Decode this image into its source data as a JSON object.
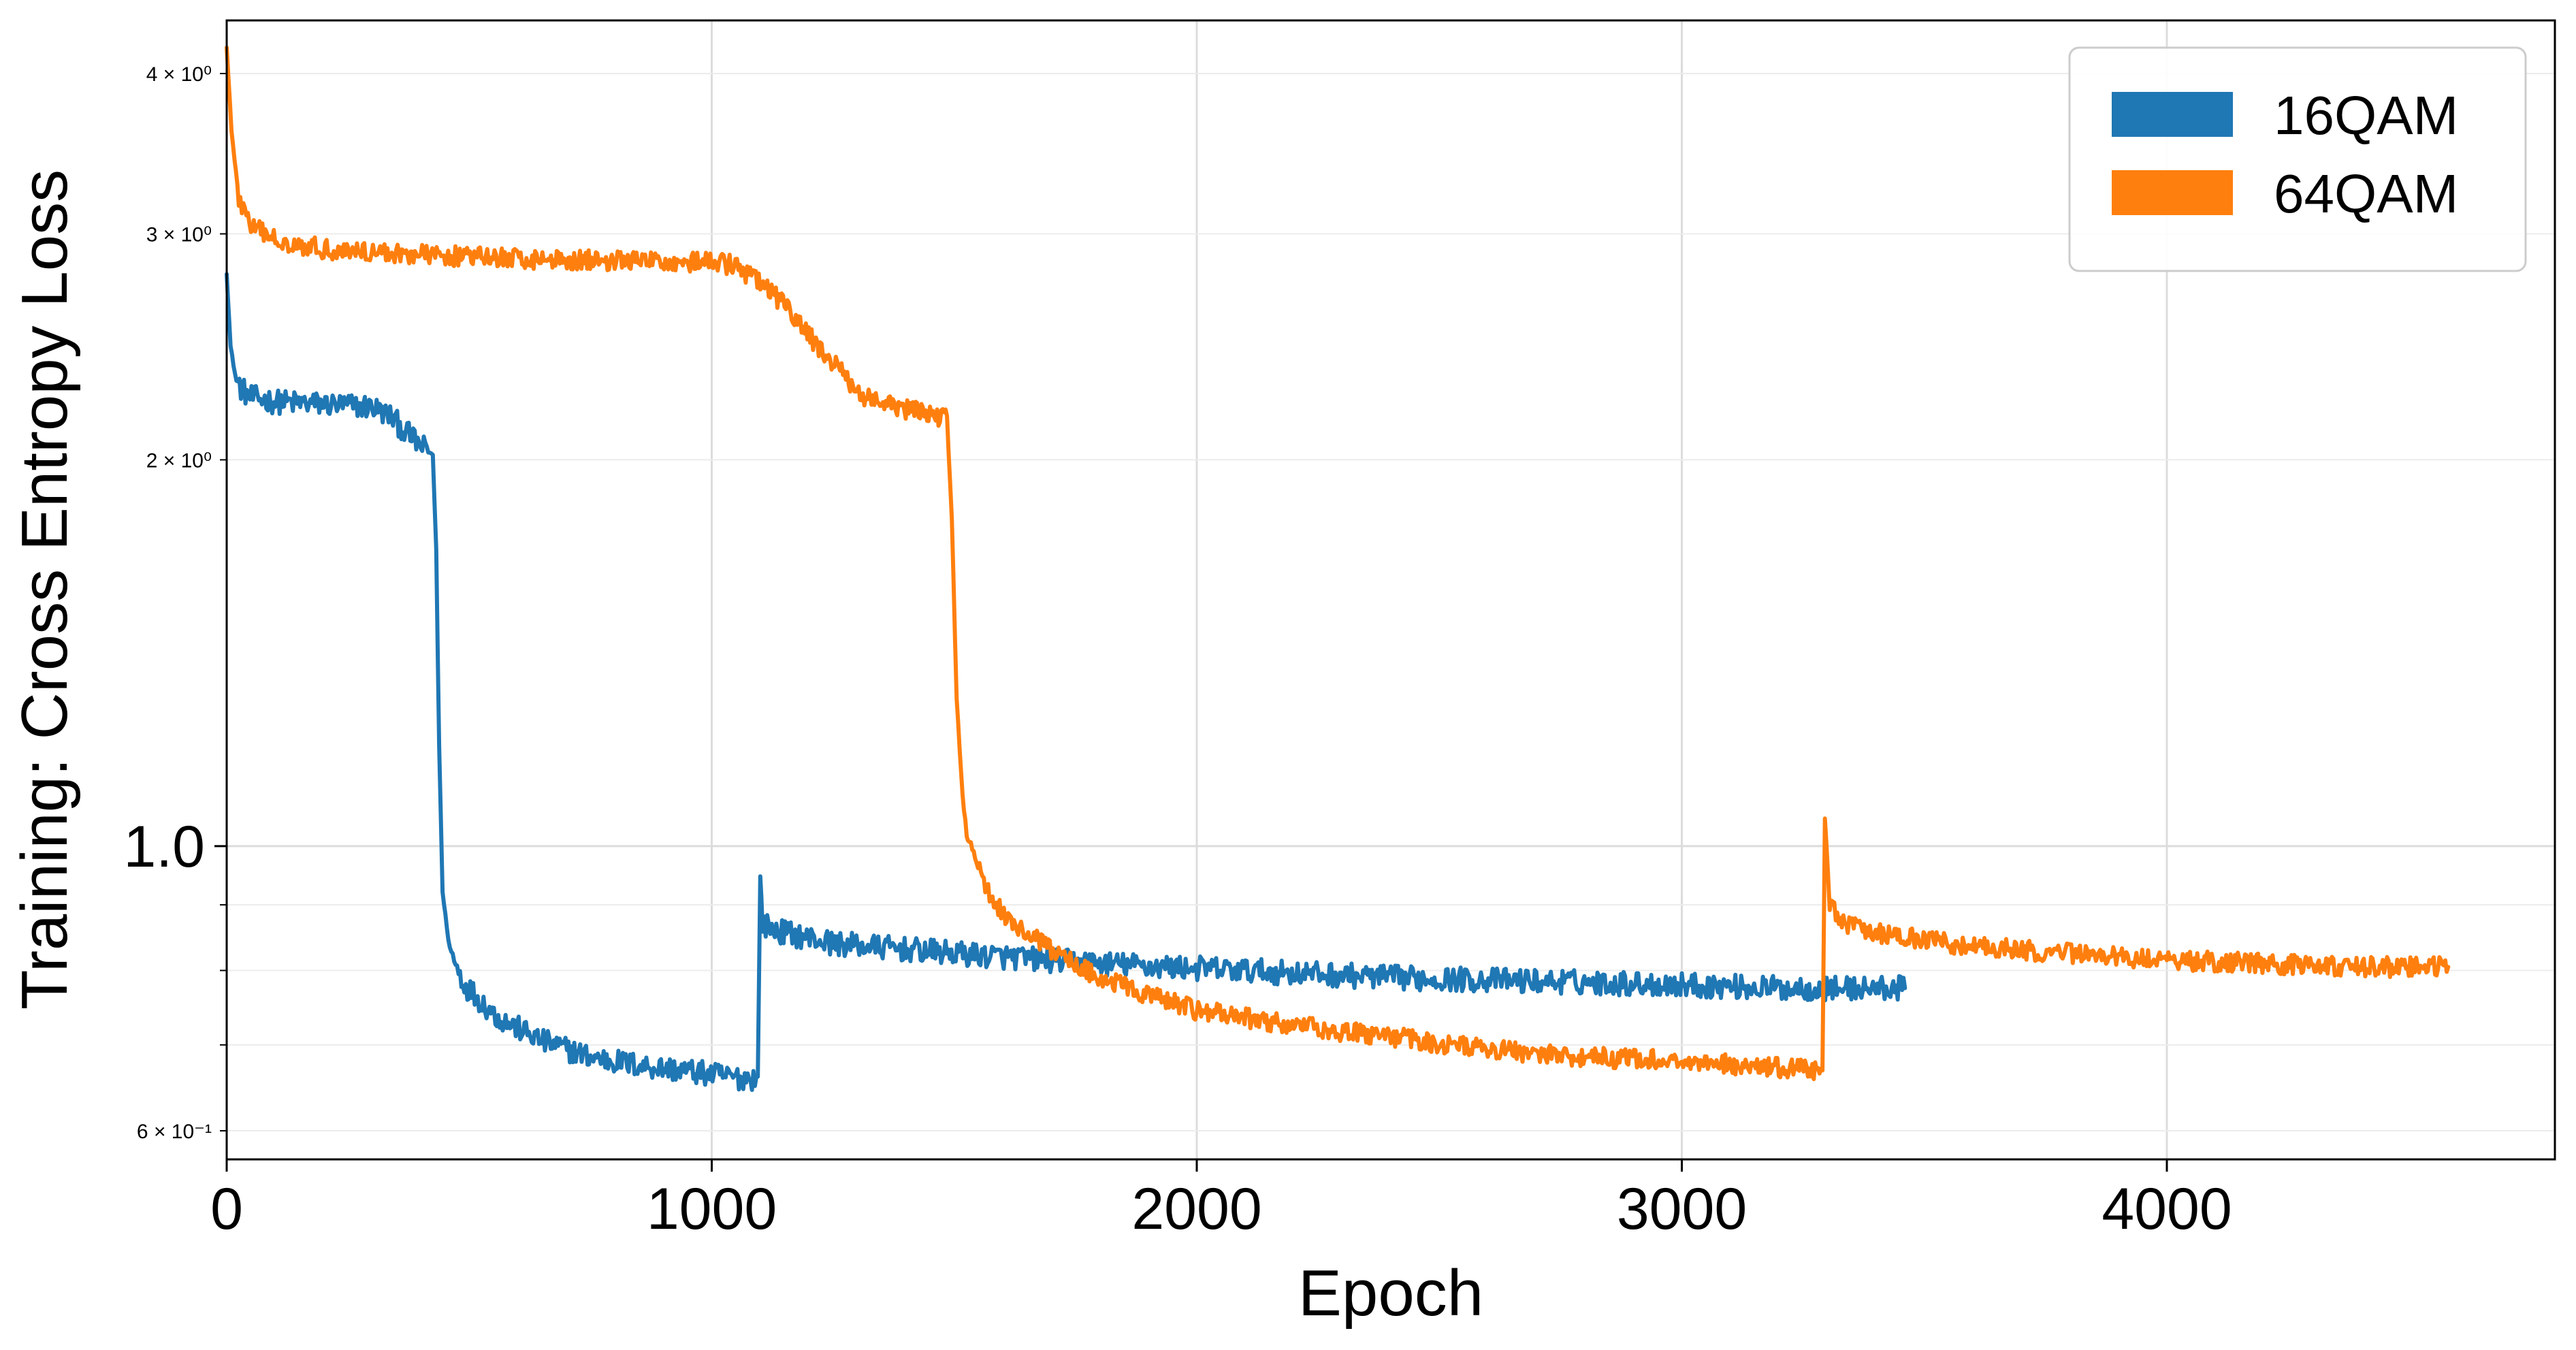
{
  "chart_data": {
    "type": "line",
    "xlabel": "Epoch",
    "ylabel": "Training: Cross Entropy Loss",
    "yscale": "log",
    "xlim": [
      0,
      4800
    ],
    "ylim": [
      0.57,
      4.4
    ],
    "grid": true,
    "legend_position": "top-right",
    "x_ticks": [
      {
        "value": 0,
        "label": "0"
      },
      {
        "value": 1000,
        "label": "1000"
      },
      {
        "value": 2000,
        "label": "2000"
      },
      {
        "value": 3000,
        "label": "3000"
      },
      {
        "value": 4000,
        "label": "4000"
      }
    ],
    "y_ticks_major": [
      {
        "value": 1.0,
        "label": "1.0"
      }
    ],
    "y_ticks_minor": [
      {
        "value": 0.6,
        "label": "6 × 10⁻¹"
      },
      {
        "value": 0.7,
        "label": ""
      },
      {
        "value": 0.8,
        "label": ""
      },
      {
        "value": 0.9,
        "label": ""
      },
      {
        "value": 2.0,
        "label": "2 × 10⁰"
      },
      {
        "value": 3.0,
        "label": "3 × 10⁰"
      },
      {
        "value": 4.0,
        "label": "4 × 10⁰"
      }
    ],
    "series": [
      {
        "name": "16QAM",
        "color": "#1f77b4",
        "noise": 0.022,
        "points": [
          [
            0,
            2.8
          ],
          [
            8,
            2.45
          ],
          [
            20,
            2.3
          ],
          [
            45,
            2.24
          ],
          [
            100,
            2.22
          ],
          [
            200,
            2.21
          ],
          [
            300,
            2.2
          ],
          [
            340,
            2.16
          ],
          [
            360,
            2.12
          ],
          [
            400,
            2.05
          ],
          [
            425,
            2.02
          ],
          [
            432,
            1.7
          ],
          [
            438,
            1.2
          ],
          [
            445,
            0.92
          ],
          [
            460,
            0.83
          ],
          [
            490,
            0.78
          ],
          [
            560,
            0.735
          ],
          [
            650,
            0.705
          ],
          [
            750,
            0.685
          ],
          [
            850,
            0.675
          ],
          [
            950,
            0.668
          ],
          [
            1050,
            0.66
          ],
          [
            1095,
            0.66
          ],
          [
            1100,
            0.95
          ],
          [
            1105,
            0.87
          ],
          [
            1130,
            0.86
          ],
          [
            1250,
            0.84
          ],
          [
            1500,
            0.825
          ],
          [
            1800,
            0.81
          ],
          [
            2100,
            0.8
          ],
          [
            2400,
            0.79
          ],
          [
            2700,
            0.785
          ],
          [
            3000,
            0.78
          ],
          [
            3200,
            0.775
          ],
          [
            3460,
            0.775
          ]
        ]
      },
      {
        "name": "64QAM",
        "color": "#ff7f0e",
        "noise": 0.018,
        "points": [
          [
            0,
            4.2
          ],
          [
            10,
            3.6
          ],
          [
            25,
            3.2
          ],
          [
            50,
            3.04
          ],
          [
            100,
            2.97
          ],
          [
            200,
            2.92
          ],
          [
            400,
            2.89
          ],
          [
            600,
            2.87
          ],
          [
            800,
            2.86
          ],
          [
            1000,
            2.85
          ],
          [
            1040,
            2.84
          ],
          [
            1100,
            2.75
          ],
          [
            1150,
            2.64
          ],
          [
            1200,
            2.5
          ],
          [
            1250,
            2.38
          ],
          [
            1300,
            2.26
          ],
          [
            1350,
            2.21
          ],
          [
            1400,
            2.19
          ],
          [
            1450,
            2.17
          ],
          [
            1485,
            2.16
          ],
          [
            1495,
            1.8
          ],
          [
            1505,
            1.3
          ],
          [
            1520,
            1.05
          ],
          [
            1540,
            0.98
          ],
          [
            1570,
            0.92
          ],
          [
            1620,
            0.87
          ],
          [
            1700,
            0.83
          ],
          [
            1800,
            0.79
          ],
          [
            1900,
            0.765
          ],
          [
            2000,
            0.745
          ],
          [
            2200,
            0.725
          ],
          [
            2400,
            0.71
          ],
          [
            2600,
            0.695
          ],
          [
            2800,
            0.685
          ],
          [
            3000,
            0.68
          ],
          [
            3200,
            0.672
          ],
          [
            3290,
            0.67
          ],
          [
            3295,
            1.05
          ],
          [
            3305,
            0.9
          ],
          [
            3330,
            0.87
          ],
          [
            3400,
            0.855
          ],
          [
            3600,
            0.835
          ],
          [
            3800,
            0.825
          ],
          [
            4000,
            0.815
          ],
          [
            4200,
            0.81
          ],
          [
            4400,
            0.805
          ],
          [
            4580,
            0.805
          ]
        ]
      }
    ]
  }
}
